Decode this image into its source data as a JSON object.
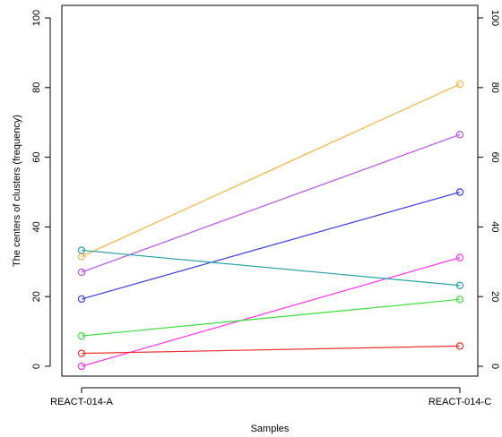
{
  "chart_data": {
    "type": "line",
    "title": "",
    "xlabel": "Samples",
    "ylabel": "The centers of clusters (frequency)",
    "categories": [
      "REACT-014-A",
      "REACT-014-C"
    ],
    "ylim": [
      0,
      100
    ],
    "yticks": [
      0,
      20,
      40,
      60,
      80,
      100
    ],
    "right_axis": true,
    "grid": false,
    "legend": "none",
    "series": [
      {
        "color": "#f5b342",
        "values": [
          31.5,
          81.0
        ]
      },
      {
        "color": "#b84fe8",
        "values": [
          27.0,
          66.5
        ]
      },
      {
        "color": "#3b3be0",
        "values": [
          19.3,
          50.0
        ]
      },
      {
        "color": "#ff33ee",
        "values": [
          0.0,
          31.2
        ]
      },
      {
        "color": "#2aa0a8",
        "values": [
          33.3,
          23.2
        ]
      },
      {
        "color": "#3ddc3d",
        "values": [
          8.7,
          19.2
        ]
      },
      {
        "color": "#e83030",
        "values": [
          3.7,
          5.8
        ]
      }
    ]
  }
}
